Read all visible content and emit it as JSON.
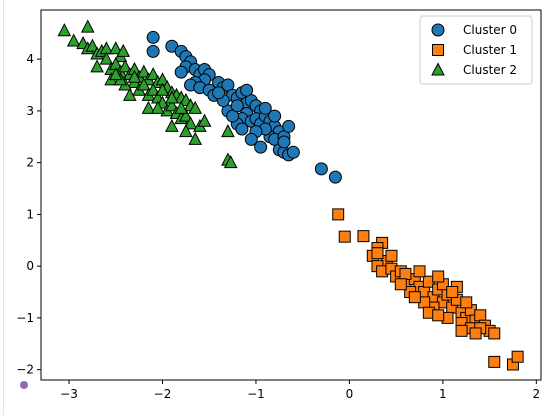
{
  "chart_data": {
    "type": "scatter",
    "title": "",
    "xlabel": "",
    "ylabel": "",
    "xlim": [
      -3.3,
      2.05
    ],
    "ylim": [
      -2.2,
      4.95
    ],
    "xticks": [
      -3,
      -2,
      -1,
      0,
      1,
      2
    ],
    "yticks": [
      -2,
      -1,
      0,
      1,
      2,
      3,
      4
    ],
    "xtick_labels": [
      "−3",
      "−2",
      "−1",
      "0",
      "1",
      "2"
    ],
    "ytick_labels": [
      "−2",
      "−1",
      "0",
      "1",
      "2",
      "3",
      "4"
    ],
    "grid": false,
    "legend_position": "top-right",
    "series": [
      {
        "name": "Cluster 0",
        "marker": "circle",
        "color": "#1f77b4",
        "points": [
          [
            -2.1,
            4.42
          ],
          [
            -2.1,
            4.15
          ],
          [
            -1.9,
            4.25
          ],
          [
            -1.8,
            4.15
          ],
          [
            -1.75,
            4.05
          ],
          [
            -1.7,
            3.95
          ],
          [
            -1.75,
            3.85
          ],
          [
            -1.8,
            3.75
          ],
          [
            -1.65,
            3.8
          ],
          [
            -1.6,
            3.7
          ],
          [
            -1.55,
            3.8
          ],
          [
            -1.5,
            3.7
          ],
          [
            -1.55,
            3.6
          ],
          [
            -1.65,
            3.55
          ],
          [
            -1.7,
            3.5
          ],
          [
            -1.6,
            3.45
          ],
          [
            -1.5,
            3.4
          ],
          [
            -1.45,
            3.3
          ],
          [
            -1.4,
            3.55
          ],
          [
            -1.35,
            3.45
          ],
          [
            -1.3,
            3.5
          ],
          [
            -1.25,
            3.3
          ],
          [
            -1.2,
            3.25
          ],
          [
            -1.15,
            3.35
          ],
          [
            -1.1,
            3.15
          ],
          [
            -1.05,
            3.2
          ],
          [
            -1.0,
            3.1
          ],
          [
            -0.95,
            3.0
          ],
          [
            -1.1,
            2.95
          ],
          [
            -1.15,
            2.85
          ],
          [
            -1.2,
            2.75
          ],
          [
            -1.05,
            2.8
          ],
          [
            -1.0,
            2.85
          ],
          [
            -0.95,
            2.75
          ],
          [
            -0.9,
            2.9
          ],
          [
            -0.85,
            2.8
          ],
          [
            -0.8,
            2.7
          ],
          [
            -0.75,
            2.6
          ],
          [
            -0.85,
            2.5
          ],
          [
            -0.9,
            2.65
          ],
          [
            -1.0,
            2.6
          ],
          [
            -1.05,
            2.45
          ],
          [
            -0.95,
            2.3
          ],
          [
            -0.8,
            2.45
          ],
          [
            -0.7,
            2.5
          ],
          [
            -0.65,
            2.7
          ],
          [
            -0.75,
            2.25
          ],
          [
            -0.7,
            2.2
          ],
          [
            -0.65,
            2.15
          ],
          [
            -0.6,
            2.2
          ],
          [
            -0.9,
            3.05
          ],
          [
            -1.1,
            3.4
          ],
          [
            -1.3,
            3.0
          ],
          [
            -1.25,
            2.9
          ],
          [
            -1.15,
            2.65
          ],
          [
            -0.7,
            2.4
          ],
          [
            -1.35,
            3.2
          ],
          [
            -1.2,
            3.1
          ],
          [
            -0.8,
            2.9
          ],
          [
            -1.4,
            3.35
          ],
          [
            -0.3,
            1.88
          ],
          [
            -0.15,
            1.72
          ]
        ]
      },
      {
        "name": "Cluster 1",
        "marker": "square",
        "color": "#ff7f0e",
        "points": [
          [
            -0.12,
            1.0
          ],
          [
            -0.05,
            0.57
          ],
          [
            0.15,
            0.58
          ],
          [
            0.35,
            0.45
          ],
          [
            0.3,
            0.35
          ],
          [
            0.25,
            0.2
          ],
          [
            0.4,
            0.1
          ],
          [
            0.3,
            0.0
          ],
          [
            0.35,
            -0.1
          ],
          [
            0.45,
            -0.05
          ],
          [
            0.5,
            -0.2
          ],
          [
            0.55,
            -0.1
          ],
          [
            0.6,
            -0.3
          ],
          [
            0.7,
            -0.25
          ],
          [
            0.75,
            -0.4
          ],
          [
            0.65,
            -0.5
          ],
          [
            0.8,
            -0.5
          ],
          [
            0.85,
            -0.3
          ],
          [
            0.9,
            -0.6
          ],
          [
            0.95,
            -0.45
          ],
          [
            1.0,
            -0.7
          ],
          [
            1.05,
            -0.55
          ],
          [
            1.1,
            -0.8
          ],
          [
            1.15,
            -0.65
          ],
          [
            1.2,
            -0.9
          ],
          [
            1.25,
            -1.0
          ],
          [
            1.3,
            -0.85
          ],
          [
            1.35,
            -1.05
          ],
          [
            1.4,
            -0.95
          ],
          [
            1.45,
            -1.15
          ],
          [
            1.0,
            -0.35
          ],
          [
            0.9,
            -0.8
          ],
          [
            1.05,
            -1.0
          ],
          [
            0.8,
            -0.7
          ],
          [
            0.95,
            -0.2
          ],
          [
            1.2,
            -1.1
          ],
          [
            1.3,
            -1.2
          ],
          [
            1.5,
            -1.25
          ],
          [
            1.15,
            -0.4
          ],
          [
            0.7,
            -0.6
          ],
          [
            1.55,
            -1.3
          ],
          [
            1.75,
            -1.9
          ],
          [
            1.8,
            -1.75
          ],
          [
            1.55,
            -1.85
          ],
          [
            1.4,
            -1.2
          ],
          [
            1.25,
            -0.7
          ],
          [
            0.6,
            -0.15
          ],
          [
            0.45,
            0.2
          ],
          [
            0.55,
            -0.35
          ],
          [
            0.85,
            -0.9
          ],
          [
            1.1,
            -0.5
          ],
          [
            0.75,
            -0.1
          ],
          [
            0.95,
            -0.95
          ],
          [
            1.35,
            -1.3
          ],
          [
            1.2,
            -1.25
          ],
          [
            0.3,
            0.25
          ]
        ]
      },
      {
        "name": "Cluster 2",
        "marker": "triangle",
        "color": "#2ca02c",
        "points": [
          [
            -3.05,
            4.55
          ],
          [
            -2.95,
            4.35
          ],
          [
            -2.8,
            4.62
          ],
          [
            -2.85,
            4.3
          ],
          [
            -2.8,
            4.2
          ],
          [
            -2.75,
            4.25
          ],
          [
            -2.7,
            4.1
          ],
          [
            -2.65,
            4.15
          ],
          [
            -2.6,
            4.2
          ],
          [
            -2.5,
            4.2
          ],
          [
            -2.45,
            4.05
          ],
          [
            -2.42,
            4.15
          ],
          [
            -2.6,
            4.0
          ],
          [
            -2.7,
            3.85
          ],
          [
            -2.55,
            3.8
          ],
          [
            -2.5,
            3.9
          ],
          [
            -2.45,
            3.75
          ],
          [
            -2.4,
            3.85
          ],
          [
            -2.35,
            3.7
          ],
          [
            -2.3,
            3.8
          ],
          [
            -2.25,
            3.65
          ],
          [
            -2.2,
            3.75
          ],
          [
            -2.15,
            3.6
          ],
          [
            -2.1,
            3.7
          ],
          [
            -2.05,
            3.55
          ],
          [
            -2.0,
            3.6
          ],
          [
            -1.95,
            3.45
          ],
          [
            -1.9,
            3.35
          ],
          [
            -1.85,
            3.3
          ],
          [
            -1.8,
            3.25
          ],
          [
            -1.75,
            3.2
          ],
          [
            -1.7,
            3.1
          ],
          [
            -1.65,
            3.05
          ],
          [
            -2.3,
            3.55
          ],
          [
            -2.25,
            3.4
          ],
          [
            -2.2,
            3.5
          ],
          [
            -2.15,
            3.3
          ],
          [
            -2.1,
            3.4
          ],
          [
            -2.05,
            3.25
          ],
          [
            -2.0,
            3.15
          ],
          [
            -1.95,
            3.0
          ],
          [
            -1.9,
            3.1
          ],
          [
            -1.85,
            2.95
          ],
          [
            -1.8,
            2.85
          ],
          [
            -1.75,
            2.9
          ],
          [
            -1.7,
            2.75
          ],
          [
            -1.6,
            2.7
          ],
          [
            -1.55,
            2.8
          ],
          [
            -1.75,
            2.6
          ],
          [
            -1.65,
            2.45
          ],
          [
            -1.3,
            2.6
          ],
          [
            -1.3,
            2.05
          ],
          [
            -1.27,
            2.0
          ],
          [
            -2.35,
            3.3
          ],
          [
            -2.15,
            3.05
          ],
          [
            -2.05,
            3.05
          ],
          [
            -1.9,
            2.7
          ],
          [
            -2.4,
            3.5
          ],
          [
            -2.55,
            3.6
          ],
          [
            -2.0,
            3.4
          ],
          [
            -1.8,
            3.05
          ],
          [
            -1.9,
            3.25
          ],
          [
            -2.45,
            3.6
          ],
          [
            -2.3,
            3.65
          ],
          [
            -2.5,
            3.7
          ]
        ]
      }
    ]
  }
}
